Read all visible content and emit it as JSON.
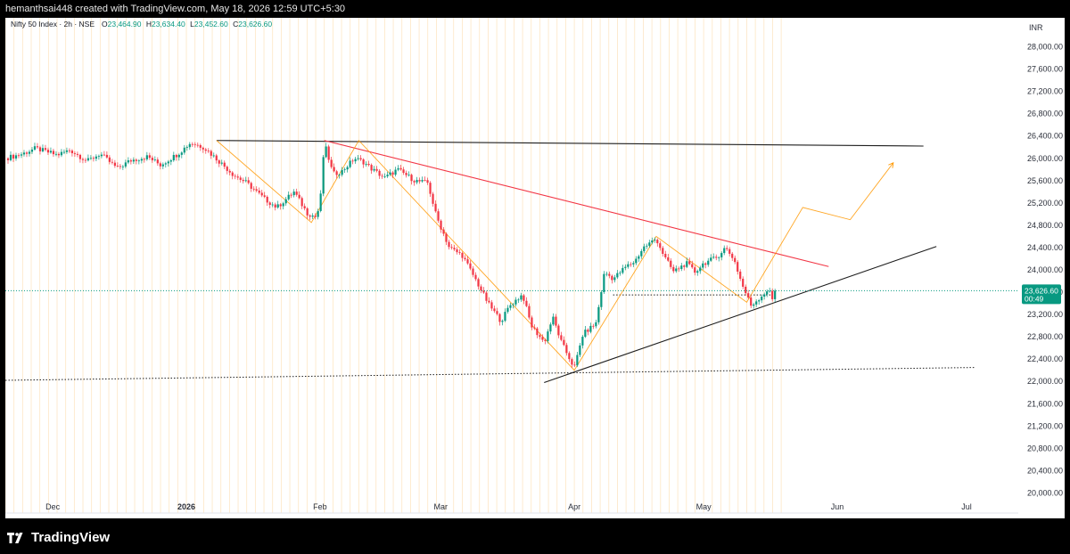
{
  "header": {
    "text": "hemanthsai448 created with TradingView.com, May 18, 2026 12:59 UTC+5:30"
  },
  "legend": {
    "symbol": "Nifty 50 Index · 2h · NSE",
    "open_label": "O",
    "open": "23,464.90",
    "high_label": "H",
    "high": "23,634.40",
    "low_label": "L",
    "low": "23,452.60",
    "close_label": "C",
    "close": "23,626.60"
  },
  "currency": "INR",
  "price_badge": {
    "price": "23,626.60",
    "countdown": "00:49"
  },
  "footer": {
    "brand": "TradingView"
  },
  "colors": {
    "up": "#089981",
    "down": "#f23645",
    "grid_vertical": "#fde6c4",
    "trend_black": "#1e1e1e",
    "trend_red": "#f23645",
    "projection_orange": "#ff9800",
    "current_price": "#089981"
  },
  "chart_data": {
    "type": "candlestick",
    "title": "Nifty 50 Index · 2h · NSE",
    "currency": "INR",
    "grid": "vertical-session-lines",
    "y_ticks": [
      "28,000.00",
      "27,600.00",
      "27,200.00",
      "26,800.00",
      "26,400.00",
      "26,000.00",
      "25,600.00",
      "25,200.00",
      "24,800.00",
      "24,400.00",
      "24,000.00",
      "23,600.00",
      "23,200.00",
      "22,800.00",
      "22,400.00",
      "22,000.00",
      "21,600.00",
      "21,200.00",
      "20,800.00",
      "20,400.00",
      "20,000.00"
    ],
    "y_range": [
      19640,
      28520
    ],
    "x_range": [
      "2025-11-20",
      "2026-07-13"
    ],
    "x_ticks": [
      {
        "label": "Dec",
        "date": "2025-12-01"
      },
      {
        "label": "2026",
        "date": "2026-01-01"
      },
      {
        "label": "Feb",
        "date": "2026-02-01"
      },
      {
        "label": "Mar",
        "date": "2026-03-01"
      },
      {
        "label": "Apr",
        "date": "2026-04-01"
      },
      {
        "label": "May",
        "date": "2026-05-01"
      },
      {
        "label": "Jun",
        "date": "2026-06-01"
      },
      {
        "label": "Jul",
        "date": "2026-07-01"
      }
    ],
    "price_path": [
      [
        "2025-11-20",
        26000
      ],
      [
        "2025-11-24",
        26080
      ],
      [
        "2025-11-27",
        26180
      ],
      [
        "2025-12-02",
        26060
      ],
      [
        "2025-12-05",
        26150
      ],
      [
        "2025-12-09",
        25950
      ],
      [
        "2025-12-12",
        26080
      ],
      [
        "2025-12-16",
        25820
      ],
      [
        "2025-12-19",
        25960
      ],
      [
        "2025-12-23",
        26030
      ],
      [
        "2025-12-26",
        25880
      ],
      [
        "2025-12-30",
        26080
      ],
      [
        "2026-01-02",
        26280
      ],
      [
        "2026-01-05",
        26200
      ],
      [
        "2026-01-08",
        25990
      ],
      [
        "2026-01-12",
        25700
      ],
      [
        "2026-01-15",
        25560
      ],
      [
        "2026-01-19",
        25280
      ],
      [
        "2026-01-22",
        25120
      ],
      [
        "2026-01-26",
        25400
      ],
      [
        "2026-01-29",
        25020
      ],
      [
        "2026-01-31",
        24950
      ],
      [
        "2026-02-01",
        25150
      ],
      [
        "2026-02-02",
        26280
      ],
      [
        "2026-02-04",
        25720
      ],
      [
        "2026-02-06",
        25760
      ],
      [
        "2026-02-09",
        26000
      ],
      [
        "2026-02-11",
        25940
      ],
      [
        "2026-02-13",
        25810
      ],
      [
        "2026-02-16",
        25650
      ],
      [
        "2026-02-19",
        25800
      ],
      [
        "2026-02-23",
        25600
      ],
      [
        "2026-02-26",
        25560
      ],
      [
        "2026-02-28",
        24960
      ],
      [
        "2026-03-03",
        24400
      ],
      [
        "2026-03-06",
        24260
      ],
      [
        "2026-03-09",
        23840
      ],
      [
        "2026-03-12",
        23400
      ],
      [
        "2026-03-15",
        23080
      ],
      [
        "2026-03-17",
        23360
      ],
      [
        "2026-03-20",
        23560
      ],
      [
        "2026-03-22",
        23000
      ],
      [
        "2026-03-25",
        22700
      ],
      [
        "2026-03-27",
        23150
      ],
      [
        "2026-03-29",
        22700
      ],
      [
        "2026-04-01",
        22240
      ],
      [
        "2026-04-03",
        22850
      ],
      [
        "2026-04-06",
        23040
      ],
      [
        "2026-04-08",
        23960
      ],
      [
        "2026-04-10",
        23840
      ],
      [
        "2026-04-13",
        24060
      ],
      [
        "2026-04-15",
        24150
      ],
      [
        "2026-04-17",
        24400
      ],
      [
        "2026-04-20",
        24560
      ],
      [
        "2026-04-22",
        24220
      ],
      [
        "2026-04-24",
        23970
      ],
      [
        "2026-04-27",
        24120
      ],
      [
        "2026-04-29",
        23960
      ],
      [
        "2026-05-01",
        24120
      ],
      [
        "2026-05-04",
        24220
      ],
      [
        "2026-05-06",
        24400
      ],
      [
        "2026-05-08",
        24200
      ],
      [
        "2026-05-10",
        23720
      ],
      [
        "2026-05-12",
        23360
      ],
      [
        "2026-05-14",
        23500
      ],
      [
        "2026-05-16",
        23650
      ],
      [
        "2026-05-17",
        23460
      ],
      [
        "2026-05-18",
        23626.6
      ]
    ],
    "trendlines": [
      {
        "name": "resistance-top",
        "color": "black",
        "from": [
          "2026-01-08",
          26320
        ],
        "to": [
          "2026-06-21",
          26220
        ]
      },
      {
        "name": "descending-resistance",
        "color": "red",
        "from": [
          "2026-02-02",
          26320
        ],
        "to": [
          "2026-05-30",
          24060
        ]
      },
      {
        "name": "rising-support",
        "color": "black",
        "from": [
          "2026-03-25",
          21980
        ],
        "to": [
          "2026-06-24",
          24420
        ]
      },
      {
        "name": "dotted-support",
        "color": "black",
        "style": "dotted",
        "from": [
          "2025-11-20",
          22020
        ],
        "to": [
          "2026-07-03",
          22250
        ]
      },
      {
        "name": "horizontal-support",
        "color": "black",
        "style": "dotted",
        "from": [
          "2026-04-10",
          23550
        ],
        "to": [
          "2026-05-17",
          23550
        ]
      }
    ],
    "projection_path": [
      [
        "2026-01-08",
        26320
      ],
      [
        "2026-01-30",
        24850
      ],
      [
        "2026-02-10",
        26320
      ],
      [
        "2026-04-01",
        22200
      ],
      [
        "2026-04-20",
        24600
      ],
      [
        "2026-05-11",
        23420
      ],
      [
        "2026-05-24",
        25120
      ],
      [
        "2026-06-04",
        24900
      ],
      [
        "2026-06-14",
        25920
      ]
    ],
    "current_price": 23626.6
  }
}
